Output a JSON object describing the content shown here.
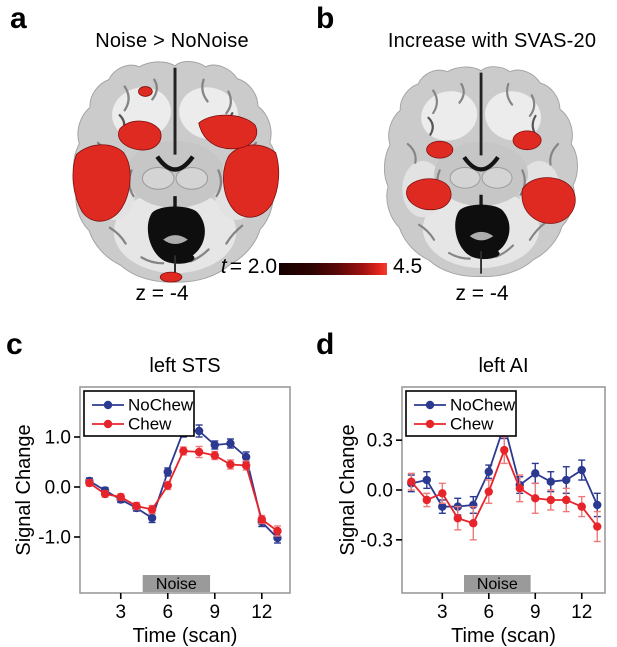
{
  "colors": {
    "nochew_blue": "#2b3990",
    "chew_red": "#e8242b",
    "activation": "#df2a21",
    "activation_edge": "#7d0f0f",
    "noise_gray": "#9a9a9a",
    "colorbar_start": "#150101",
    "colorbar_end": "#f43b2d",
    "plot_border": "#9b9b9b"
  },
  "panels": {
    "a": {
      "letter": "a",
      "title": "Noise > NoNoise",
      "slice_label": "z = -4"
    },
    "b": {
      "letter": "b",
      "title": "Increase with SVAS-20",
      "slice_label": "z = -4"
    },
    "c": {
      "letter": "c"
    },
    "d": {
      "letter": "d"
    }
  },
  "colorbar": {
    "stat_symbol": "t",
    "min_label": "= 2.0",
    "max_label": "4.5"
  },
  "chart_data": [
    {
      "id": "left_sts",
      "type": "line",
      "title": "left STS",
      "xlabel": "Time (scan)",
      "ylabel": "Signal Change",
      "x": [
        1,
        2,
        3,
        4,
        5,
        6,
        7,
        8,
        9,
        10,
        11,
        12,
        13
      ],
      "xlim": [
        0.4,
        13.8
      ],
      "ylim": [
        -2.12,
        2.0
      ],
      "xticks": [
        3,
        6,
        9,
        12
      ],
      "yticks": [
        {
          "v": 1.0,
          "label": "1.0"
        },
        {
          "v": 0.0,
          "label": "0.0"
        },
        {
          "v": -1.0,
          "label": "-1.0"
        }
      ],
      "grid": false,
      "legend_position": "top-left",
      "series": [
        {
          "name": "NoChew",
          "color": "#2b3990",
          "error_color": "#2b3990",
          "values": [
            0.12,
            -0.07,
            -0.25,
            -0.42,
            -0.62,
            0.3,
            1.12,
            1.12,
            0.84,
            0.87,
            0.6,
            -0.7,
            -1.02
          ],
          "errors": [
            0.06,
            0.06,
            0.06,
            0.06,
            0.09,
            0.08,
            0.12,
            0.12,
            0.08,
            0.09,
            0.1,
            0.09,
            0.1
          ]
        },
        {
          "name": "Chew",
          "color": "#e8242b",
          "error_color": "#ef7a7a",
          "values": [
            0.08,
            -0.14,
            -0.2,
            -0.38,
            -0.45,
            0.03,
            0.72,
            0.7,
            0.63,
            0.45,
            0.43,
            -0.65,
            -0.88
          ],
          "errors": [
            0.06,
            0.06,
            0.06,
            0.07,
            0.08,
            0.08,
            0.08,
            0.11,
            0.08,
            0.09,
            0.09,
            0.08,
            0.1
          ]
        }
      ],
      "noise_band": {
        "label": "Noise",
        "x_start": 4.4,
        "x_end": 8.7,
        "color": "#9a9a9a"
      }
    },
    {
      "id": "left_ai",
      "type": "line",
      "title": "left AI",
      "xlabel": "Time (scan)",
      "ylabel": "Signal Change",
      "x": [
        1,
        2,
        3,
        4,
        5,
        6,
        7,
        8,
        9,
        10,
        11,
        12,
        13
      ],
      "xlim": [
        0.4,
        13.5
      ],
      "ylim": [
        -0.62,
        0.62
      ],
      "xticks": [
        3,
        6,
        9,
        12
      ],
      "yticks": [
        {
          "v": 0.3,
          "label": "0.3"
        },
        {
          "v": 0.0,
          "label": "0.0"
        },
        {
          "v": -0.3,
          "label": "-0.3"
        }
      ],
      "grid": false,
      "legend_position": "top-left",
      "series": [
        {
          "name": "NoChew",
          "color": "#2b3990",
          "error_color": "#2b3990",
          "values": [
            0.04,
            0.06,
            -0.1,
            -0.1,
            -0.09,
            0.11,
            0.39,
            0.03,
            0.1,
            0.05,
            0.06,
            0.12,
            -0.09
          ],
          "errors": [
            0.05,
            0.05,
            0.04,
            0.05,
            0.05,
            0.04,
            0.08,
            0.05,
            0.06,
            0.06,
            0.08,
            0.06,
            0.07
          ]
        },
        {
          "name": "Chew",
          "color": "#e8242b",
          "error_color": "#ef7a7a",
          "values": [
            0.05,
            -0.06,
            -0.02,
            -0.17,
            -0.2,
            -0.01,
            0.24,
            0.01,
            -0.05,
            -0.06,
            -0.06,
            -0.1,
            -0.22
          ],
          "errors": [
            0.05,
            0.04,
            0.06,
            0.07,
            0.1,
            0.07,
            0.08,
            0.08,
            0.09,
            0.06,
            0.07,
            0.06,
            0.09
          ]
        }
      ],
      "noise_band": {
        "label": "Noise",
        "x_start": 4.4,
        "x_end": 8.7,
        "color": "#9a9a9a"
      }
    }
  ]
}
